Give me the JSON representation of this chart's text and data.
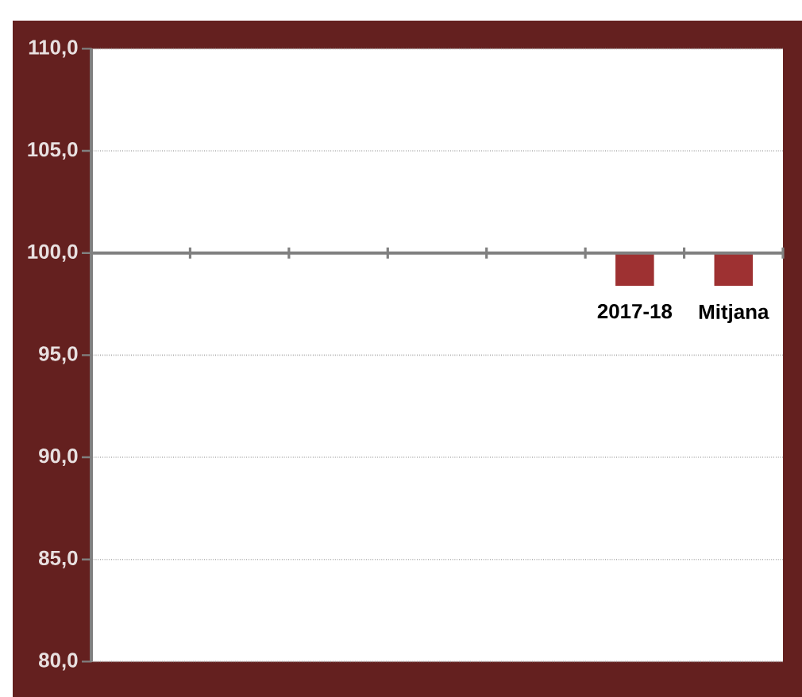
{
  "chart_data": {
    "type": "bar",
    "categories": [
      null,
      null,
      null,
      null,
      null,
      "2017-18",
      "Mitjana"
    ],
    "values": [
      null,
      null,
      null,
      null,
      null,
      -1.6,
      -1.6
    ],
    "base": [
      null,
      null,
      null,
      null,
      null,
      100,
      100
    ],
    "color": "#9e3132",
    "ylim": [
      80,
      110
    ],
    "yticks": [
      {
        "value": 80,
        "label": "80,0"
      },
      {
        "value": 85,
        "label": "85,0"
      },
      {
        "value": 90,
        "label": "90,0"
      },
      {
        "value": 95,
        "label": "95,0"
      },
      {
        "value": 100,
        "label": "100,0"
      },
      {
        "value": 105,
        "label": "105,0"
      },
      {
        "value": 110,
        "label": "110,0"
      }
    ],
    "grid": "y"
  }
}
